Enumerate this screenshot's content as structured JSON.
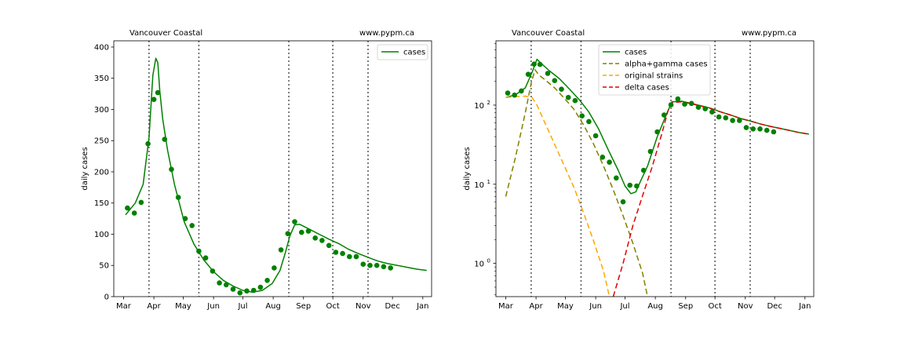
{
  "colors": {
    "cases": "#008000",
    "alpha_gamma": "#808000",
    "original": "#FFA500",
    "delta": "#E00000",
    "marker": "#008000",
    "vline": "#555555"
  },
  "chart_data": [
    {
      "type": "line",
      "region": "Vancouver Coastal",
      "site": "www.pypm.ca",
      "ylabel": "daily cases",
      "yscale": "linear",
      "ylim": [
        0,
        410
      ],
      "yticks": [
        0,
        50,
        100,
        150,
        200,
        250,
        300,
        350,
        400
      ],
      "ytick_labels": [
        "0",
        "50",
        "100",
        "150",
        "200",
        "250",
        "300",
        "350",
        "400"
      ],
      "xlim": [
        -10,
        315
      ],
      "xticks": [
        0,
        31,
        61,
        92,
        122,
        153,
        184,
        214,
        245,
        275,
        306
      ],
      "xtick_labels": [
        "Mar",
        "Apr",
        "May",
        "Jun",
        "Jul",
        "Aug",
        "Sep",
        "Oct",
        "Nov",
        "Dec",
        "Jan"
      ],
      "vlines": [
        26,
        77,
        169,
        214,
        250
      ],
      "legend": {
        "position": "top-right",
        "entries": [
          "cases"
        ]
      },
      "series": [
        {
          "name": "cases",
          "style": "solid",
          "color_key": "cases",
          "x": [
            2,
            12,
            20,
            26,
            30,
            33,
            35,
            37,
            40,
            45,
            52,
            62,
            72,
            82,
            92,
            102,
            112,
            122,
            132,
            142,
            152,
            160,
            165,
            170,
            175,
            180,
            190,
            200,
            210,
            220,
            230,
            240,
            250,
            260,
            270,
            280,
            290,
            300,
            310
          ],
          "y": [
            131,
            150,
            180,
            255,
            355,
            382,
            375,
            330,
            285,
            235,
            180,
            120,
            84,
            59,
            40,
            26,
            17,
            10,
            7,
            10,
            21,
            42,
            68,
            97,
            115,
            116,
            108,
            100,
            92,
            85,
            76,
            69,
            63,
            57,
            53,
            50,
            47,
            44,
            42
          ]
        }
      ],
      "points": {
        "color_key": "marker",
        "x": [
          4,
          11,
          18,
          25,
          31,
          35,
          42,
          49,
          56,
          63,
          70,
          77,
          84,
          91,
          98,
          105,
          112,
          119,
          126,
          133,
          140,
          147,
          154,
          161,
          168,
          175,
          182,
          189,
          196,
          203,
          210,
          217,
          224,
          231,
          238,
          245,
          252,
          259,
          266,
          273,
          280
        ],
        "y": [
          142,
          134,
          151,
          245,
          316,
          327,
          252,
          204,
          159,
          125,
          114,
          73,
          62,
          41,
          22,
          19,
          12,
          6,
          9,
          10,
          15,
          26,
          46,
          75,
          101,
          120,
          103,
          105,
          94,
          90,
          82,
          71,
          69,
          64,
          64,
          52,
          50,
          50,
          48,
          46,
          null
        ]
      }
    },
    {
      "type": "line",
      "region": "Vancouver Coastal",
      "site": "www.pypm.ca",
      "ylabel": "daily cases",
      "yscale": "log",
      "ylim": [
        0.38,
        650
      ],
      "yticks": [
        1,
        10,
        100
      ],
      "ytick_labels": [
        "10",
        "10",
        "10"
      ],
      "ytick_exponents": [
        "0",
        "1",
        "2"
      ],
      "xlim": [
        -10,
        315
      ],
      "xticks": [
        0,
        31,
        61,
        92,
        122,
        153,
        184,
        214,
        245,
        275,
        306
      ],
      "xtick_labels": [
        "Mar",
        "Apr",
        "May",
        "Jun",
        "Jul",
        "Aug",
        "Sep",
        "Oct",
        "Nov",
        "Dec",
        "Jan"
      ],
      "vlines": [
        26,
        77,
        169,
        214,
        250
      ],
      "legend": {
        "position": "top-center",
        "entries": [
          "cases",
          "alpha+gamma cases",
          "original strains",
          "delta cases"
        ]
      },
      "series": [
        {
          "name": "cases",
          "style": "solid",
          "color_key": "cases",
          "x": [
            0,
            10,
            20,
            27,
            32,
            37,
            45,
            55,
            65,
            75,
            85,
            95,
            105,
            115,
            122,
            128,
            133,
            138,
            145,
            155,
            165,
            170,
            180,
            190,
            200,
            210,
            220,
            230,
            240,
            250,
            260,
            270,
            280,
            290,
            300,
            305,
            310
          ],
          "y": [
            125,
            135,
            165,
            260,
            380,
            330,
            270,
            215,
            160,
            118,
            82,
            50,
            27,
            15,
            9.5,
            7.6,
            8,
            11,
            17,
            40,
            80,
            110,
            112,
            105,
            98,
            91,
            82,
            75,
            68,
            63,
            58,
            54,
            51,
            48,
            45,
            44,
            43
          ]
        },
        {
          "name": "alpha+gamma cases",
          "style": "dashed",
          "color_key": "alpha_gamma",
          "x": [
            0,
            10,
            20,
            26,
            30,
            34,
            40,
            50,
            60,
            70,
            80,
            90,
            100,
            110,
            120,
            130,
            140,
            145
          ],
          "y": [
            7,
            22,
            80,
            190,
            280,
            240,
            210,
            165,
            122,
            88,
            55,
            32,
            17,
            8.5,
            4,
            1.8,
            0.75,
            0.38
          ]
        },
        {
          "name": "original strains",
          "style": "dashed",
          "color_key": "original",
          "x": [
            0,
            10,
            20,
            27,
            32,
            40,
            50,
            60,
            70,
            80,
            90,
            100,
            106
          ],
          "y": [
            125,
            128,
            130,
            125,
            100,
            60,
            32,
            17,
            9,
            4.2,
            1.9,
            0.8,
            0.38
          ]
        },
        {
          "name": "delta cases",
          "style": "dashed",
          "color_key": "delta",
          "x": [
            110,
            120,
            130,
            140,
            150,
            160,
            166,
            170,
            180,
            190,
            200,
            210,
            220,
            230,
            240,
            250,
            260,
            270,
            280,
            290,
            300,
            310
          ],
          "y": [
            0.38,
            1.0,
            3.0,
            7.2,
            17,
            45,
            85,
            108,
            110,
            104,
            97,
            90,
            82,
            75,
            68,
            63,
            58,
            54,
            51,
            48,
            45,
            43
          ]
        }
      ],
      "points": {
        "color_key": "marker",
        "x": [
          2,
          9,
          16,
          23,
          29,
          35,
          43,
          50,
          57,
          64,
          71,
          78,
          85,
          92,
          99,
          106,
          113,
          120,
          127,
          134,
          141,
          148,
          155,
          162,
          169,
          176,
          183,
          190,
          197,
          204,
          211,
          218,
          225,
          232,
          239,
          246,
          253,
          260,
          267,
          274
        ],
        "y": [
          142,
          134,
          151,
          245,
          330,
          327,
          252,
          204,
          159,
          125,
          114,
          73,
          62,
          41,
          22,
          19,
          12,
          6,
          9.7,
          9.5,
          15,
          26,
          46,
          75,
          101,
          120,
          103,
          105,
          94,
          90,
          82,
          71,
          69,
          64,
          64,
          52,
          50,
          50,
          48,
          46
        ]
      }
    }
  ]
}
